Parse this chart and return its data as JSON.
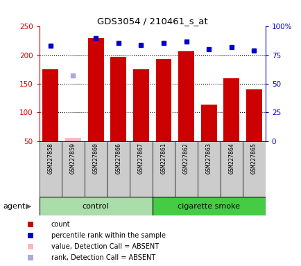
{
  "title": "GDS3054 / 210461_s_at",
  "samples": [
    "GSM227858",
    "GSM227859",
    "GSM227860",
    "GSM227866",
    "GSM227867",
    "GSM227861",
    "GSM227862",
    "GSM227863",
    "GSM227864",
    "GSM227865"
  ],
  "bar_values": [
    175,
    null,
    230,
    197,
    175,
    193,
    207,
    114,
    160,
    140
  ],
  "bar_absent_values": [
    null,
    55,
    null,
    null,
    null,
    null,
    null,
    null,
    null,
    null
  ],
  "rank_values": [
    83,
    null,
    90,
    86,
    84,
    86,
    87,
    80,
    82,
    79
  ],
  "rank_absent_values": [
    null,
    57,
    null,
    null,
    null,
    null,
    null,
    null,
    null,
    null
  ],
  "bar_color": "#CC0000",
  "bar_absent_color": "#FFB6C1",
  "rank_color": "#0000CC",
  "rank_absent_color": "#AAAADD",
  "ylim_left": [
    50,
    250
  ],
  "ylim_right": [
    0,
    100
  ],
  "yticks_left": [
    50,
    100,
    150,
    200,
    250
  ],
  "yticks_right": [
    0,
    25,
    50,
    75,
    100
  ],
  "ytick_labels_right": [
    "0",
    "25",
    "50",
    "75",
    "100%"
  ],
  "control_n": 5,
  "smoke_n": 5,
  "control_label": "control",
  "smoke_label": "cigarette smoke",
  "agent_label": "agent",
  "control_bg": "#AADDAA",
  "smoke_bg": "#44CC44",
  "group_bar_bg": "#CCCCCC",
  "legend_items": [
    {
      "label": "count",
      "color": "#CC0000"
    },
    {
      "label": "percentile rank within the sample",
      "color": "#0000CC"
    },
    {
      "label": "value, Detection Call = ABSENT",
      "color": "#FFB6C1"
    },
    {
      "label": "rank, Detection Call = ABSENT",
      "color": "#AAAADD"
    }
  ],
  "bar_width": 0.7,
  "marker_size": 5,
  "grid_dotted_at": [
    100,
    150,
    200
  ],
  "tick_color_left": "#CC0000",
  "tick_color_right": "#0000CC"
}
